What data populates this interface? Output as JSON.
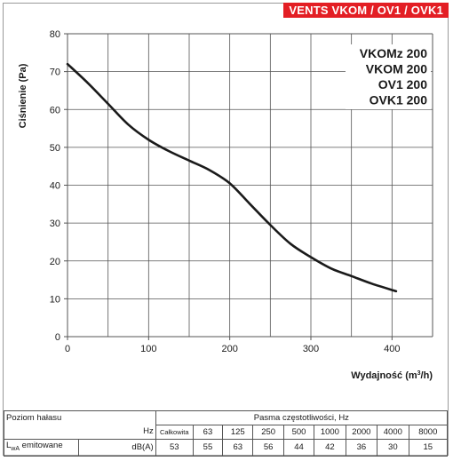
{
  "header": {
    "badge": "VENTS VKOM / OV1 / OVK1"
  },
  "chart_data": {
    "type": "line",
    "title": "",
    "xlabel_prefix": "Wydajność (m",
    "xlabel_sup": "3",
    "xlabel_suffix": "/h)",
    "ylabel": "Ciśnienie (Pa)",
    "xlim": [
      0,
      450
    ],
    "ylim": [
      0,
      80
    ],
    "xticks": [
      0,
      100,
      200,
      300,
      400
    ],
    "yticks": [
      0,
      10,
      20,
      30,
      40,
      50,
      60,
      70,
      80
    ],
    "grid": true,
    "legend_lines": [
      "VKOMz 200",
      "VKOM 200",
      "OV1 200",
      "OVK1 200"
    ],
    "series": [
      {
        "x": [
          0,
          25,
          50,
          75,
          100,
          125,
          150,
          175,
          200,
          225,
          250,
          275,
          300,
          325,
          350,
          375,
          405
        ],
        "y": [
          72,
          67,
          61.5,
          56,
          52,
          49,
          46.5,
          44,
          40.5,
          35,
          29.5,
          24.5,
          21,
          18,
          16,
          14,
          12
        ]
      }
    ]
  },
  "noise_table": {
    "label": "Poziom hałasu",
    "hz": "Hz",
    "bands_title": "Pasma częstotliwości, Hz",
    "bands": [
      "Całkowita",
      "63",
      "125",
      "250",
      "500",
      "1000",
      "2000",
      "4000",
      "8000"
    ],
    "row_label_prefix": "L",
    "row_label_sub": "wA",
    "row_label_suffix": " emitowane",
    "unit": "dB(A)",
    "values": [
      "53",
      "55",
      "63",
      "56",
      "44",
      "42",
      "36",
      "30",
      "15"
    ]
  },
  "colors": {
    "badge_bg": "#e31e24",
    "curve": "#1a1a1a",
    "grid": "#555555"
  }
}
